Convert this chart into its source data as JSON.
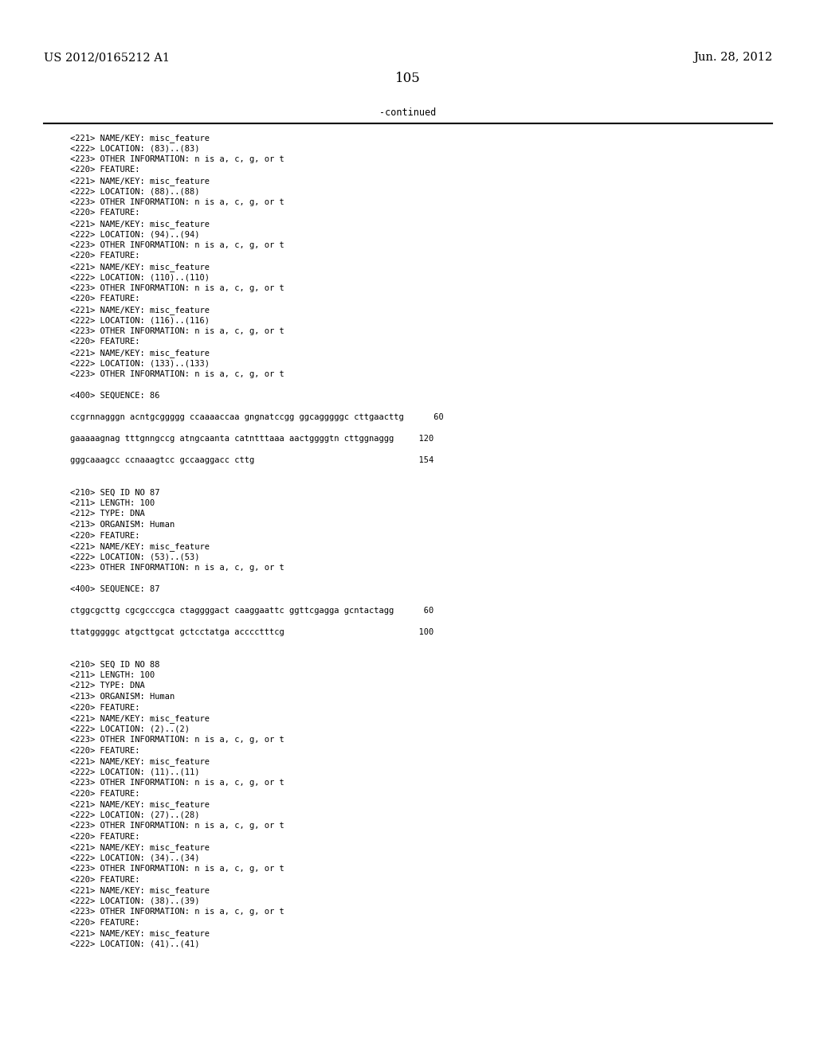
{
  "header_left": "US 2012/0165212 A1",
  "header_right": "Jun. 28, 2012",
  "page_number": "105",
  "continued_text": "-continued",
  "background_color": "#ffffff",
  "text_color": "#000000",
  "font_size_header": 10.5,
  "font_size_body": 8.5,
  "content_lines": [
    "<221> NAME/KEY: misc_feature",
    "<222> LOCATION: (83)..(83)",
    "<223> OTHER INFORMATION: n is a, c, g, or t",
    "<220> FEATURE:",
    "<221> NAME/KEY: misc_feature",
    "<222> LOCATION: (88)..(88)",
    "<223> OTHER INFORMATION: n is a, c, g, or t",
    "<220> FEATURE:",
    "<221> NAME/KEY: misc_feature",
    "<222> LOCATION: (94)..(94)",
    "<223> OTHER INFORMATION: n is a, c, g, or t",
    "<220> FEATURE:",
    "<221> NAME/KEY: misc_feature",
    "<222> LOCATION: (110)..(110)",
    "<223> OTHER INFORMATION: n is a, c, g, or t",
    "<220> FEATURE:",
    "<221> NAME/KEY: misc_feature",
    "<222> LOCATION: (116)..(116)",
    "<223> OTHER INFORMATION: n is a, c, g, or t",
    "<220> FEATURE:",
    "<221> NAME/KEY: misc_feature",
    "<222> LOCATION: (133)..(133)",
    "<223> OTHER INFORMATION: n is a, c, g, or t",
    "",
    "<400> SEQUENCE: 86",
    "",
    "ccgrnnagggn acntgcggggg ccaaaaccaa gngnatccgg ggcagggggc cttgaacttg      60",
    "",
    "gaaaaagnag tttgnngccg atngcaanta catntttaaa aactggggtn cttggnaggg     120",
    "",
    "gggcaaagcc ccnaaagtcc gccaaggacc cttg                                 154",
    "",
    "",
    "<210> SEQ ID NO 87",
    "<211> LENGTH: 100",
    "<212> TYPE: DNA",
    "<213> ORGANISM: Human",
    "<220> FEATURE:",
    "<221> NAME/KEY: misc_feature",
    "<222> LOCATION: (53)..(53)",
    "<223> OTHER INFORMATION: n is a, c, g, or t",
    "",
    "<400> SEQUENCE: 87",
    "",
    "ctggcgcttg cgcgcccgca ctaggggact caaggaattc ggttcgagga gcntactagg      60",
    "",
    "ttatgggggc atgcttgcat gctcctatga acccctttcg                           100",
    "",
    "",
    "<210> SEQ ID NO 88",
    "<211> LENGTH: 100",
    "<212> TYPE: DNA",
    "<213> ORGANISM: Human",
    "<220> FEATURE:",
    "<221> NAME/KEY: misc_feature",
    "<222> LOCATION: (2)..(2)",
    "<223> OTHER INFORMATION: n is a, c, g, or t",
    "<220> FEATURE:",
    "<221> NAME/KEY: misc_feature",
    "<222> LOCATION: (11)..(11)",
    "<223> OTHER INFORMATION: n is a, c, g, or t",
    "<220> FEATURE:",
    "<221> NAME/KEY: misc_feature",
    "<222> LOCATION: (27)..(28)",
    "<223> OTHER INFORMATION: n is a, c, g, or t",
    "<220> FEATURE:",
    "<221> NAME/KEY: misc_feature",
    "<222> LOCATION: (34)..(34)",
    "<223> OTHER INFORMATION: n is a, c, g, or t",
    "<220> FEATURE:",
    "<221> NAME/KEY: misc_feature",
    "<222> LOCATION: (38)..(39)",
    "<223> OTHER INFORMATION: n is a, c, g, or t",
    "<220> FEATURE:",
    "<221> NAME/KEY: misc_feature",
    "<222> LOCATION: (41)..(41)"
  ]
}
